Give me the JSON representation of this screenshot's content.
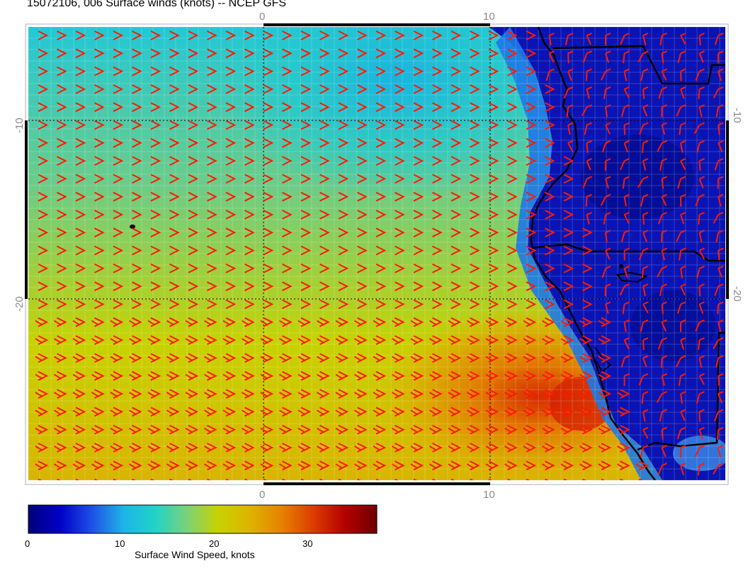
{
  "title": "15072106, 006 Surface winds (knots) -- NCEP GFS",
  "axes": {
    "lon_ticks": [
      "0",
      "10"
    ],
    "lat_ticks": [
      "-10",
      "-20"
    ]
  },
  "colorbar": {
    "label": "Surface Wind Speed, knots",
    "ticks": [
      "0",
      "10",
      "20",
      "30"
    ],
    "range": [
      0,
      37
    ],
    "colors": [
      "#00007a",
      "#0000c8",
      "#1e50e6",
      "#1eb4e6",
      "#22d2c8",
      "#7ad27a",
      "#c8d200",
      "#dcb400",
      "#e68200",
      "#dc3c00",
      "#b40000",
      "#6e0000"
    ]
  },
  "map": {
    "background_field": "surface wind speed",
    "barb_color": "#ff0000",
    "coast_color": "#000000"
  }
}
